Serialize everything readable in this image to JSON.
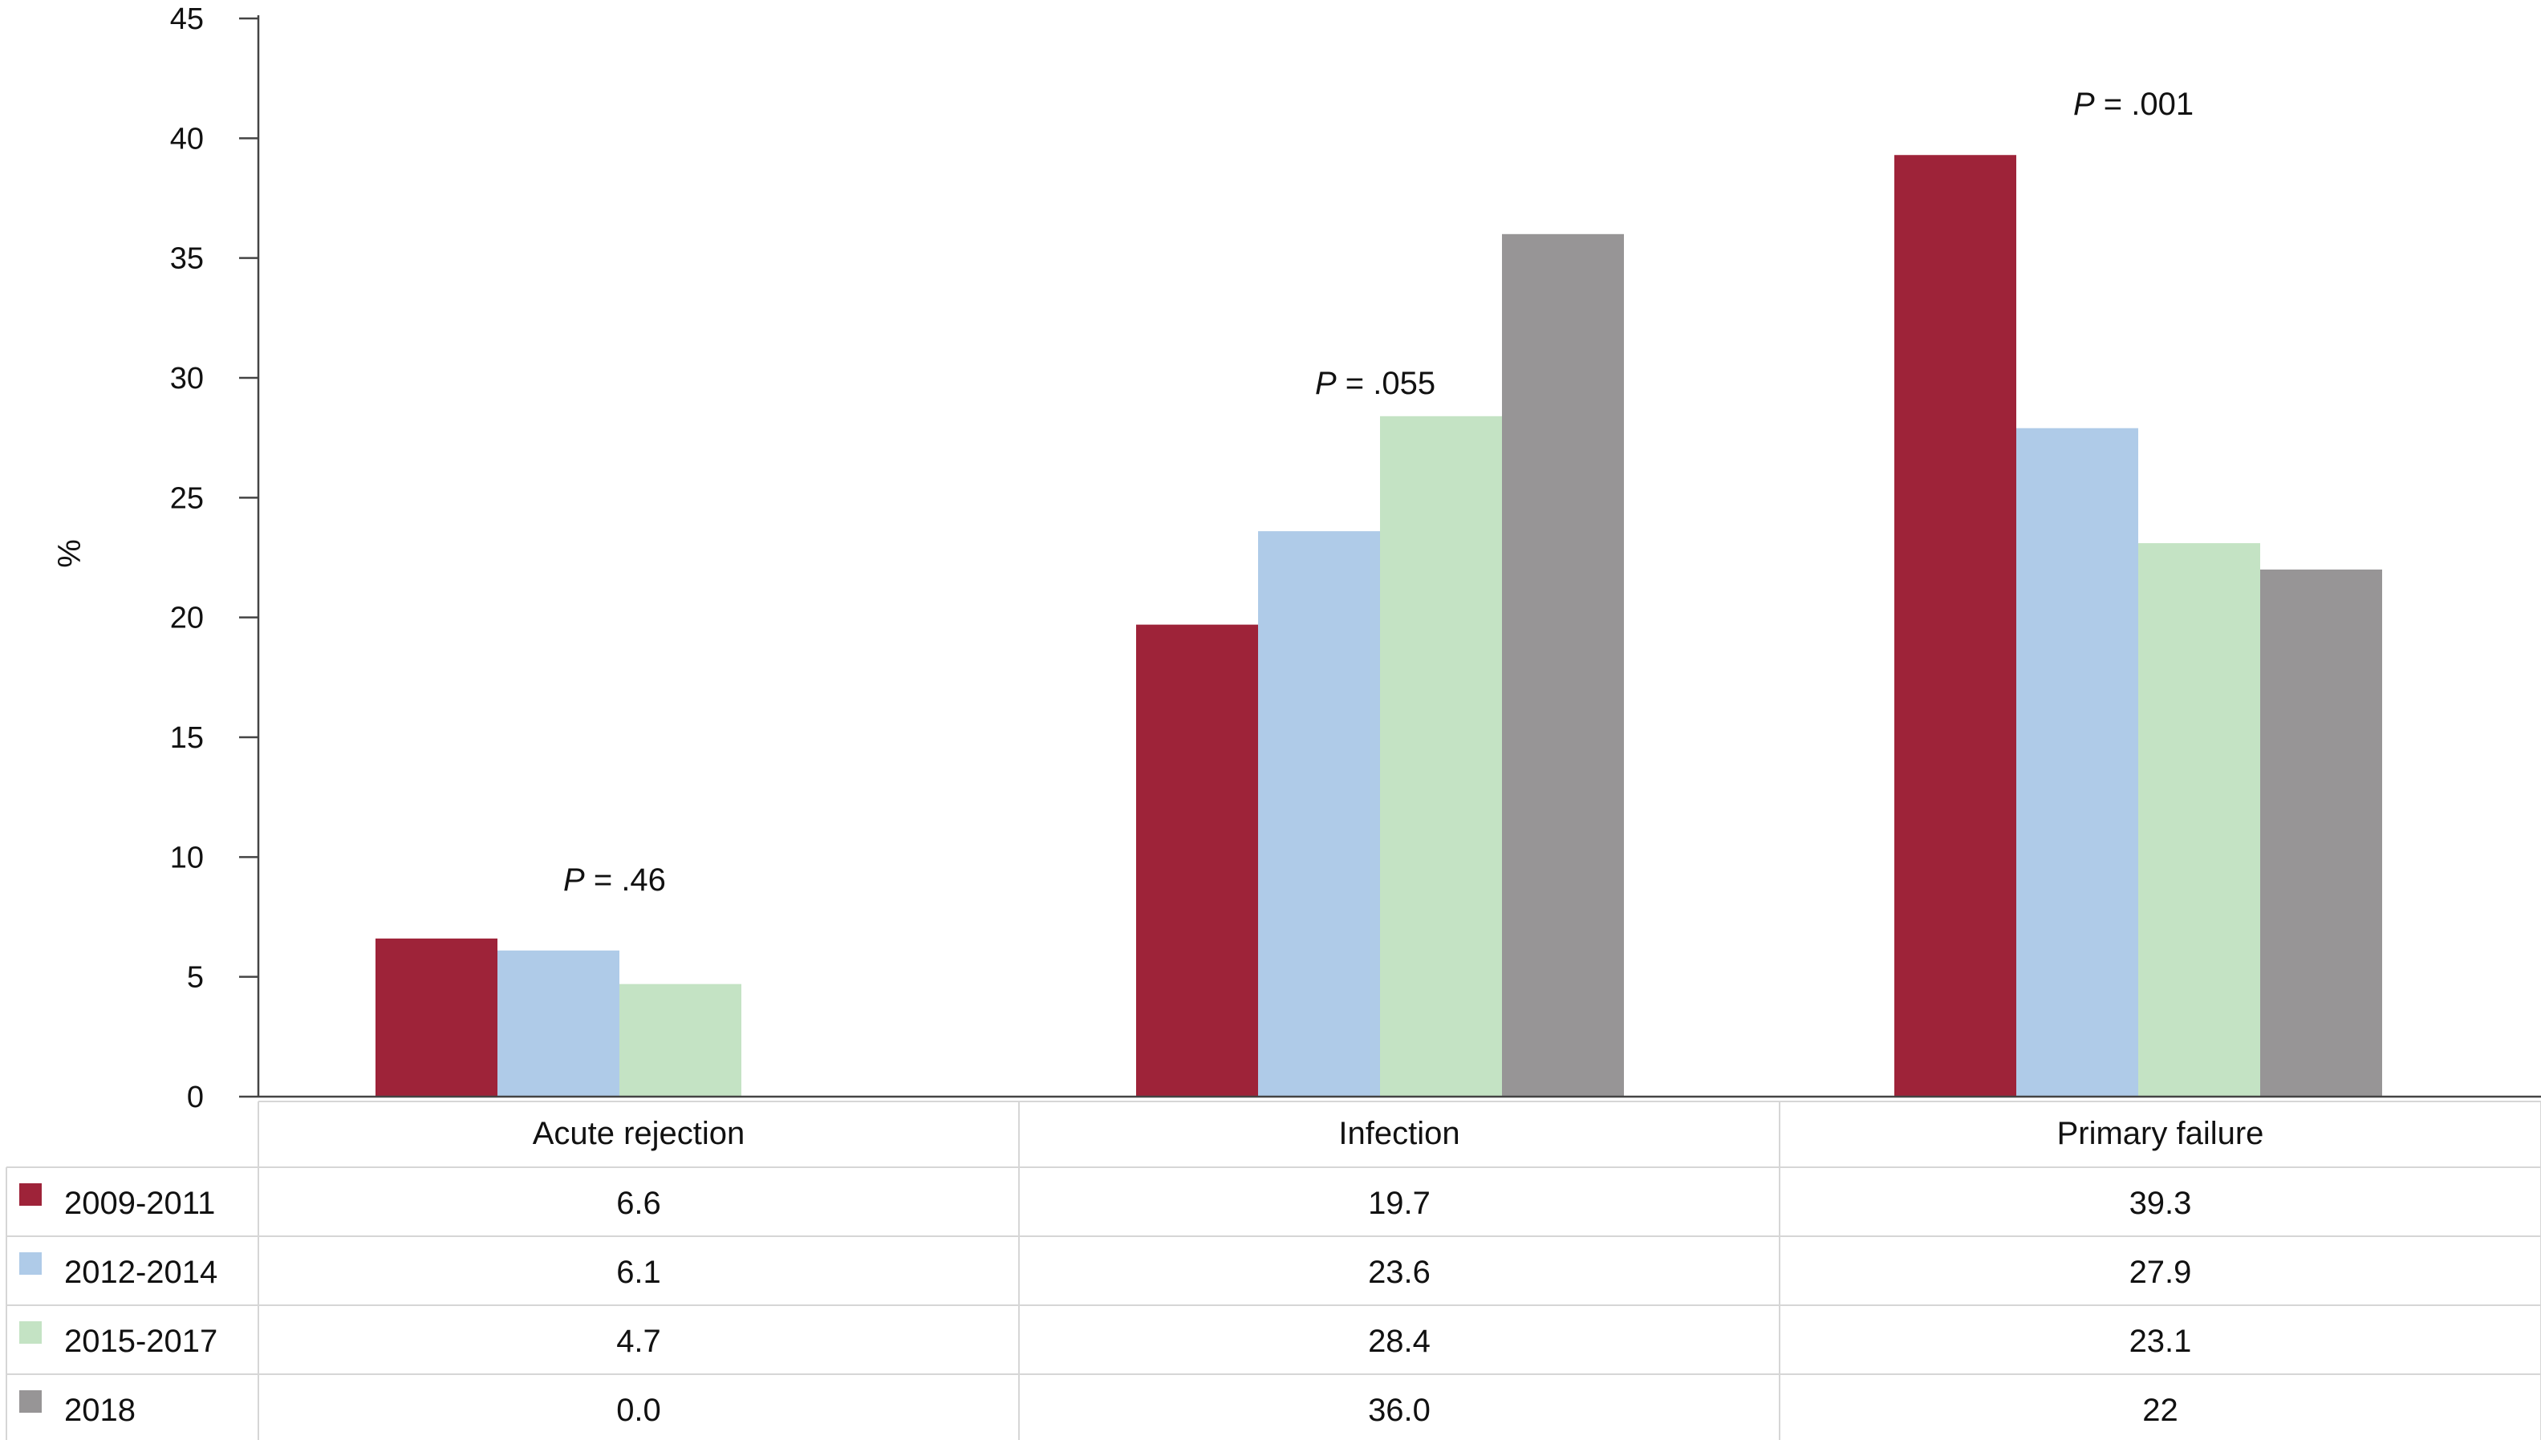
{
  "chart_data": {
    "type": "bar",
    "title": "",
    "xlabel": "",
    "ylabel": "%",
    "ylim": [
      0,
      45
    ],
    "yticks": [
      0,
      5,
      10,
      15,
      20,
      25,
      30,
      35,
      40,
      45
    ],
    "categories": [
      "Acute rejection",
      "Infection",
      "Primary failure"
    ],
    "series": [
      {
        "name": "2009-2011",
        "values": [
          6.6,
          19.7,
          39.3
        ],
        "labels": [
          "6.6",
          "19.7",
          "39.3"
        ],
        "color": "#9e2339"
      },
      {
        "name": "2012-2014",
        "values": [
          6.1,
          23.6,
          27.9
        ],
        "labels": [
          "6.1",
          "23.6",
          "27.9"
        ],
        "color": "#afcbe8"
      },
      {
        "name": "2015-2017",
        "values": [
          4.7,
          28.4,
          23.1
        ],
        "labels": [
          "4.7",
          "28.4",
          "23.1"
        ],
        "color": "#c4e3c4"
      },
      {
        "name": "2018",
        "values": [
          0.0,
          36.0,
          22
        ],
        "labels": [
          "0.0",
          "36.0",
          "22"
        ],
        "color": "#979596"
      }
    ],
    "annotations": [
      {
        "category": "Acute rejection",
        "italic": "P",
        "text": " = .46"
      },
      {
        "category": "Infection",
        "italic": "P",
        "text": " = .055"
      },
      {
        "category": "Primary failure",
        "italic": "P",
        "text": " = .001"
      }
    ],
    "grid": false,
    "legend": "data-table"
  }
}
